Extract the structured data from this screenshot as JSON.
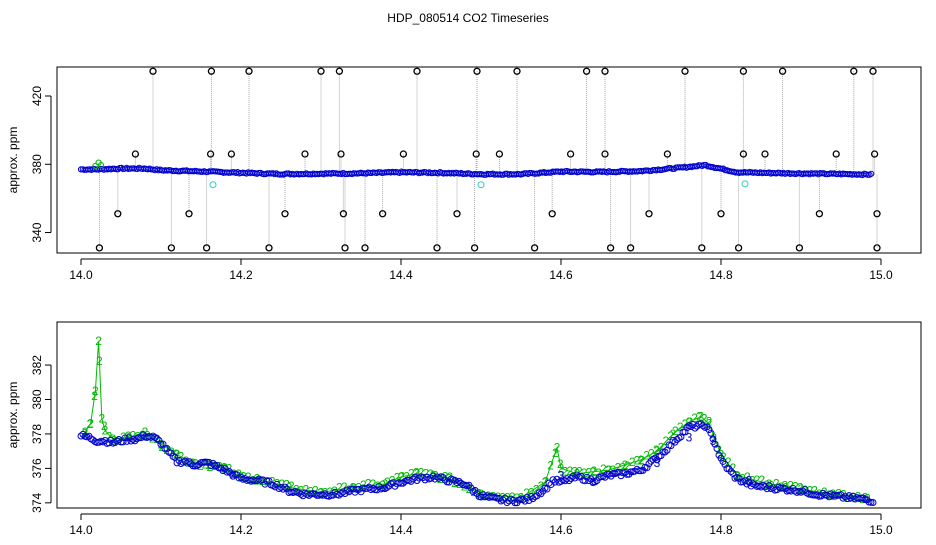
{
  "title": "HDP_080514  CO2 Timeseries",
  "colors": {
    "black_series": "#000000",
    "blue_series": "#0000cc",
    "green_series": "#00bb00",
    "cyan_series": "#33cccc",
    "spike_line": "#a8a8a8"
  },
  "chart_data": [
    {
      "type": "scatter",
      "title": "HDP_080514  CO2 Timeseries",
      "xlabel": "",
      "ylabel": "approx. ppm",
      "xlim": [
        13.97,
        15.05
      ],
      "ylim": [
        328,
        437
      ],
      "x_ticks": [
        14.0,
        14.2,
        14.4,
        14.6,
        14.8,
        15.0
      ],
      "x_tick_labels": [
        "14.0",
        "14.2",
        "14.4",
        "14.6",
        "14.8",
        "15.0"
      ],
      "y_ticks": [
        340,
        380,
        420
      ],
      "y_tick_labels": [
        "340",
        "380",
        "420"
      ],
      "x_range": [
        14.0,
        14.99
      ],
      "baseline_level": [
        [
          14.0,
          377
        ],
        [
          14.02,
          377
        ],
        [
          14.05,
          377.5
        ],
        [
          14.08,
          377.5
        ],
        [
          14.1,
          376.5
        ],
        [
          14.15,
          375.8
        ],
        [
          14.2,
          375
        ],
        [
          14.25,
          374.3
        ],
        [
          14.3,
          374.5
        ],
        [
          14.35,
          374.7
        ],
        [
          14.4,
          375.3
        ],
        [
          14.45,
          375
        ],
        [
          14.5,
          374.2
        ],
        [
          14.55,
          374.2
        ],
        [
          14.6,
          375.7
        ],
        [
          14.65,
          375.5
        ],
        [
          14.7,
          376
        ],
        [
          14.75,
          378
        ],
        [
          14.78,
          379.5
        ],
        [
          14.82,
          375.3
        ],
        [
          14.85,
          375
        ],
        [
          14.9,
          374.6
        ],
        [
          14.95,
          374.3
        ],
        [
          14.99,
          374
        ]
      ],
      "outliers_high": [
        14.09,
        14.163,
        14.21,
        14.3,
        14.323,
        14.42,
        14.495,
        14.545,
        14.632,
        14.655,
        14.755,
        14.828,
        14.877,
        14.966,
        14.99
      ],
      "outliers_low": [
        14.023,
        14.113,
        14.157,
        14.235,
        14.33,
        14.355,
        14.445,
        14.492,
        14.567,
        14.662,
        14.687,
        14.776,
        14.822,
        14.898,
        14.995
      ],
      "outliers_mid_high": [
        14.068,
        14.162,
        14.188,
        14.28,
        14.325,
        14.403,
        14.494,
        14.523,
        14.612,
        14.655,
        14.733,
        14.828,
        14.855,
        14.944,
        14.992
      ],
      "outliers_mid_low": [
        14.046,
        14.135,
        14.255,
        14.328,
        14.377,
        14.47,
        14.589,
        14.71,
        14.8,
        14.923,
        14.995
      ],
      "outlier_levels": {
        "high": 434.5,
        "low": 331,
        "mid_high": 386,
        "mid_low": 351
      },
      "series": [
        {
          "name": "",
          "marker": "o",
          "values_note_level": "outliers"
        },
        {
          "name": "",
          "marker": "o",
          "values_note_level": "baseline"
        }
      ]
    },
    {
      "type": "scatter",
      "title": "",
      "xlabel": "",
      "ylabel": "approx. ppm",
      "xlim": [
        13.97,
        15.05
      ],
      "ylim": [
        373.7,
        384.5
      ],
      "x_ticks": [
        14.0,
        14.2,
        14.4,
        14.6,
        14.8,
        15.0
      ],
      "x_tick_labels": [
        "14.0",
        "14.2",
        "14.4",
        "14.6",
        "14.8",
        "15.0"
      ],
      "y_ticks": [
        374,
        376,
        378,
        380,
        382
      ],
      "y_tick_labels": [
        "374",
        "376",
        "378",
        "380",
        "382"
      ],
      "series": [
        {
          "name": "",
          "marker": "o",
          "points": [
            [
              14.0,
              377.9
            ],
            [
              14.01,
              377.8
            ],
            [
              14.02,
              377.6
            ],
            [
              14.03,
              377.6
            ],
            [
              14.04,
              377.5
            ],
            [
              14.05,
              377.6
            ],
            [
              14.06,
              377.7
            ],
            [
              14.07,
              377.7
            ],
            [
              14.08,
              377.9
            ],
            [
              14.09,
              377.8
            ],
            [
              14.1,
              377.5
            ],
            [
              14.11,
              376.9
            ],
            [
              14.12,
              376.4
            ],
            [
              14.13,
              376.4
            ],
            [
              14.14,
              376.2
            ],
            [
              14.15,
              376.3
            ],
            [
              14.16,
              376.3
            ],
            [
              14.18,
              375.9
            ],
            [
              14.2,
              375.4
            ],
            [
              14.22,
              375.3
            ],
            [
              14.24,
              375.1
            ],
            [
              14.26,
              374.7
            ],
            [
              14.28,
              374.5
            ],
            [
              14.3,
              374.5
            ],
            [
              14.32,
              374.5
            ],
            [
              14.34,
              374.7
            ],
            [
              14.36,
              374.8
            ],
            [
              14.38,
              374.9
            ],
            [
              14.4,
              375.2
            ],
            [
              14.42,
              375.4
            ],
            [
              14.44,
              375.5
            ],
            [
              14.46,
              375.3
            ],
            [
              14.48,
              375.1
            ],
            [
              14.5,
              374.4
            ],
            [
              14.52,
              374.2
            ],
            [
              14.54,
              374.1
            ],
            [
              14.56,
              374.2
            ],
            [
              14.58,
              374.8
            ],
            [
              14.59,
              375.3
            ],
            [
              14.6,
              375.2
            ],
            [
              14.62,
              375.5
            ],
            [
              14.64,
              375.3
            ],
            [
              14.66,
              375.6
            ],
            [
              14.68,
              375.7
            ],
            [
              14.7,
              375.9
            ],
            [
              14.72,
              376.6
            ],
            [
              14.74,
              377.5
            ],
            [
              14.76,
              378.4
            ],
            [
              14.78,
              378.5
            ],
            [
              14.79,
              377.8
            ],
            [
              14.8,
              376.5
            ],
            [
              14.81,
              375.9
            ],
            [
              14.82,
              375.4
            ],
            [
              14.84,
              375.0
            ],
            [
              14.86,
              374.9
            ],
            [
              14.88,
              374.8
            ],
            [
              14.9,
              374.7
            ],
            [
              14.92,
              374.5
            ],
            [
              14.94,
              374.4
            ],
            [
              14.96,
              374.3
            ],
            [
              14.98,
              374.2
            ],
            [
              14.99,
              374.1
            ]
          ]
        },
        {
          "name": "",
          "marker": "2",
          "points": [
            [
              14.005,
              378.1
            ],
            [
              14.012,
              378.6
            ],
            [
              14.018,
              380.5
            ],
            [
              14.022,
              383.4
            ],
            [
              14.026,
              378.9
            ],
            [
              14.03,
              378.2
            ],
            [
              14.04,
              377.7
            ],
            [
              14.06,
              377.8
            ],
            [
              14.08,
              378.1
            ],
            [
              14.1,
              377.4
            ],
            [
              14.12,
              376.8
            ],
            [
              14.14,
              376.3
            ],
            [
              14.16,
              376.2
            ],
            [
              14.18,
              376.0
            ],
            [
              14.2,
              375.5
            ],
            [
              14.22,
              375.4
            ],
            [
              14.26,
              374.9
            ],
            [
              14.3,
              374.6
            ],
            [
              14.34,
              374.9
            ],
            [
              14.38,
              375.1
            ],
            [
              14.4,
              375.5
            ],
            [
              14.42,
              375.7
            ],
            [
              14.44,
              375.6
            ],
            [
              14.46,
              375.4
            ],
            [
              14.5,
              374.5
            ],
            [
              14.55,
              374.3
            ],
            [
              14.58,
              375.2
            ],
            [
              14.595,
              377.2
            ],
            [
              14.6,
              376.0
            ],
            [
              14.62,
              375.7
            ],
            [
              14.64,
              375.8
            ],
            [
              14.66,
              375.9
            ],
            [
              14.68,
              376.2
            ],
            [
              14.7,
              376.5
            ],
            [
              14.72,
              377.0
            ],
            [
              14.74,
              378.0
            ],
            [
              14.76,
              378.7
            ],
            [
              14.775,
              379.0
            ],
            [
              14.785,
              378.6
            ],
            [
              14.8,
              376.8
            ],
            [
              14.82,
              375.6
            ],
            [
              14.86,
              375.1
            ],
            [
              14.88,
              375.0
            ],
            [
              14.9,
              374.8
            ],
            [
              14.94,
              374.5
            ],
            [
              14.98,
              374.3
            ]
          ]
        },
        {
          "name": "",
          "marker": "3",
          "points": [
            [
              14.19,
              375.6
            ],
            [
              14.6,
              375.6
            ],
            [
              14.64,
              375.2
            ],
            [
              14.72,
              376.3
            ],
            [
              14.76,
              377.8
            ],
            [
              14.79,
              377.6
            ],
            [
              14.835,
              375.3
            ]
          ]
        }
      ]
    }
  ]
}
